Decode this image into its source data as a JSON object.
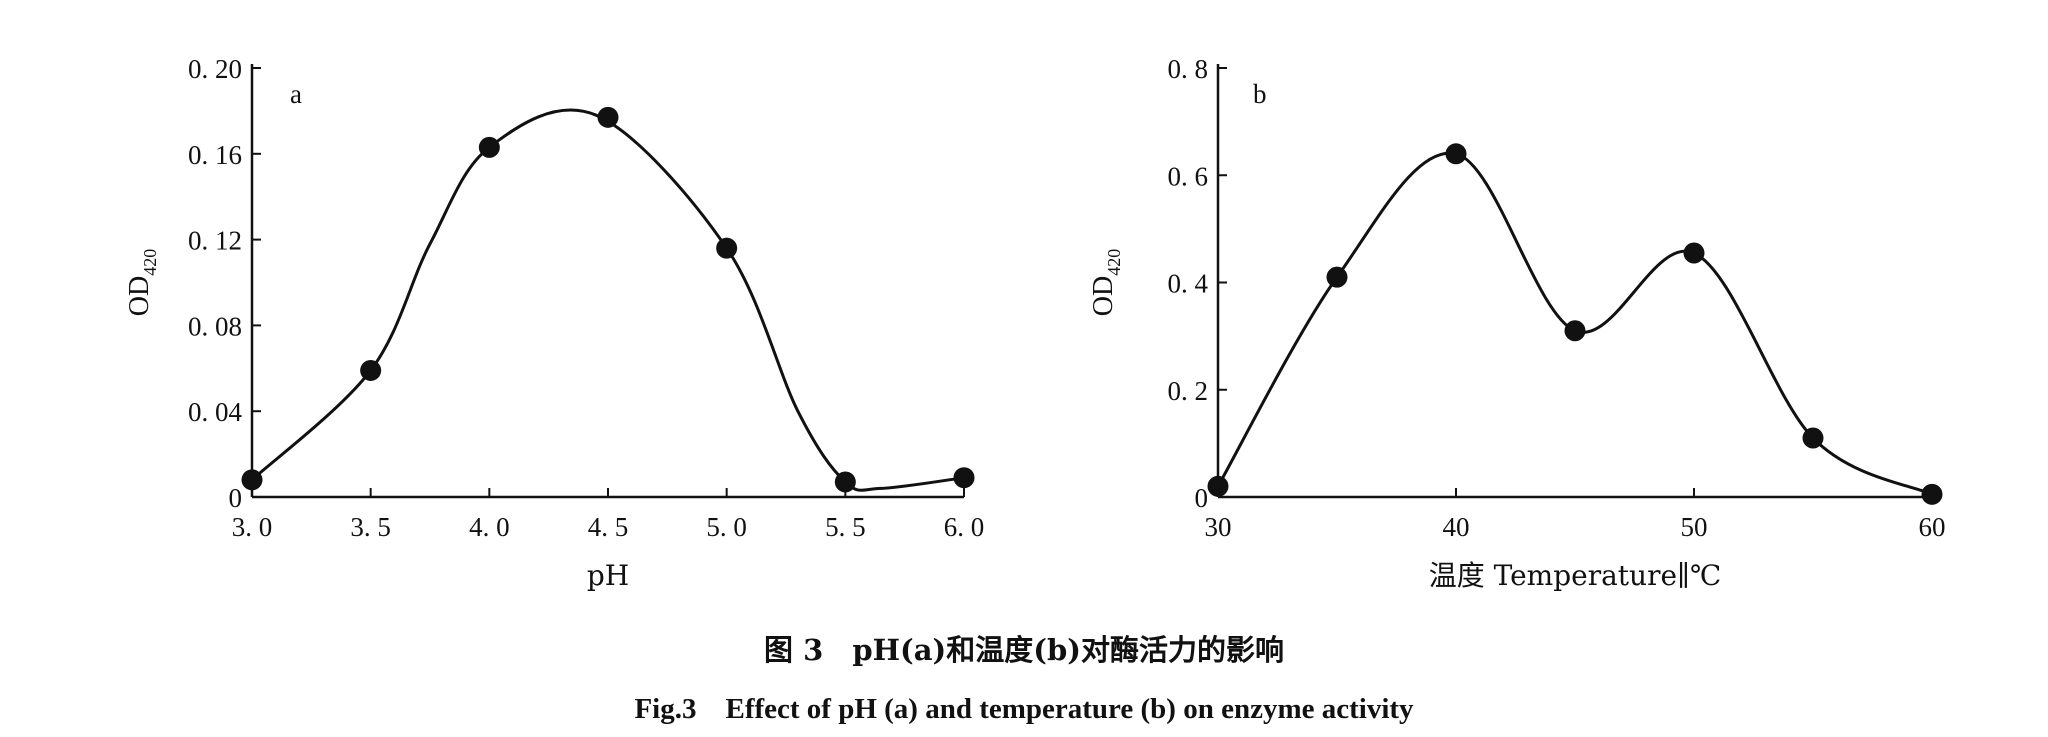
{
  "figure": {
    "caption_cn": "图 3　pH(a)和温度(b)对酶活力的影响",
    "caption_en": "Fig.3　Effect of pH (a) and temperature (b) on enzyme activity"
  },
  "chart_data": [
    {
      "type": "line",
      "panel_label": "a",
      "xlabel": "pH",
      "ylabel": "OD",
      "ylabel_sub": "420",
      "xlim": [
        3.0,
        6.0
      ],
      "ylim": [
        0,
        0.2
      ],
      "xticks": [
        3.0,
        3.5,
        4.0,
        4.5,
        5.0,
        5.5,
        6.0
      ],
      "xtick_labels": [
        "3. 0",
        "3. 5",
        "4. 0",
        "4. 5",
        "5. 0",
        "5. 5",
        "6. 0"
      ],
      "yticks": [
        0,
        0.04,
        0.08,
        0.12,
        0.16,
        0.2
      ],
      "ytick_labels": [
        "0",
        "0. 04",
        "0. 08",
        "0. 12",
        "0. 16",
        "0. 20"
      ],
      "grid": false,
      "x": [
        3.0,
        3.5,
        4.0,
        4.5,
        5.0,
        5.5,
        6.0
      ],
      "y": [
        0.008,
        0.059,
        0.163,
        0.177,
        0.116,
        0.007,
        0.009
      ],
      "curve_x": [
        3.0,
        3.5,
        3.75,
        4.0,
        4.45,
        5.0,
        5.3,
        5.5,
        5.65,
        6.0
      ],
      "curve_y": [
        0.008,
        0.059,
        0.118,
        0.163,
        0.178,
        0.116,
        0.04,
        0.007,
        0.004,
        0.009
      ]
    },
    {
      "type": "line",
      "panel_label": "b",
      "xlabel": "温度 Temperature∥℃",
      "ylabel": "OD",
      "ylabel_sub": "420",
      "xlim": [
        30,
        60
      ],
      "ylim": [
        0,
        0.8
      ],
      "xticks": [
        30,
        40,
        50,
        60
      ],
      "xtick_labels": [
        "30",
        "40",
        "50",
        "60"
      ],
      "yticks": [
        0,
        0.2,
        0.4,
        0.6,
        0.8
      ],
      "ytick_labels": [
        "0",
        "0. 2",
        "0. 4",
        "0. 6",
        "0. 8"
      ],
      "grid": false,
      "x": [
        30,
        35,
        40,
        45,
        50,
        55,
        60
      ],
      "y": [
        0.02,
        0.41,
        0.64,
        0.31,
        0.455,
        0.11,
        0.005
      ],
      "curve_x": [
        30,
        35,
        40,
        45,
        50,
        55,
        60
      ],
      "curve_y": [
        0.02,
        0.41,
        0.64,
        0.31,
        0.455,
        0.11,
        0.005
      ]
    }
  ]
}
